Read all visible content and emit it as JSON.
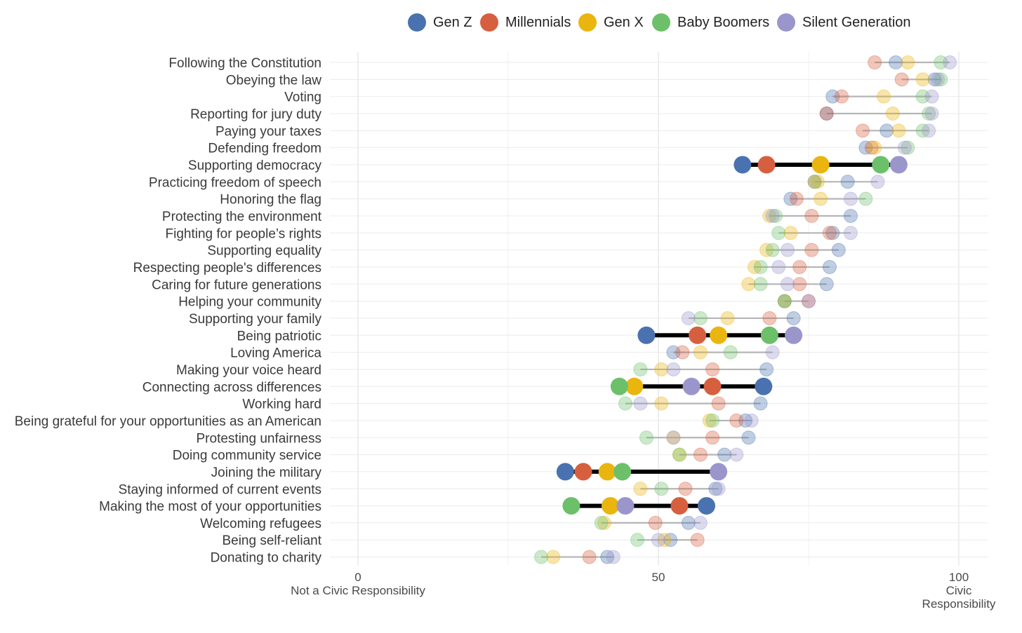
{
  "chart_data": {
    "type": "dot-range",
    "title": "",
    "xlim": [
      0,
      105
    ],
    "x_ticks": [
      {
        "value": 0,
        "label": "0",
        "sublabel": [
          "Not a Civic Responsibility"
        ]
      },
      {
        "value": 50,
        "label": "50",
        "sublabel": []
      },
      {
        "value": 100,
        "label": "100",
        "sublabel": [
          "Civic",
          "Responsibility"
        ]
      }
    ],
    "minor_grid": [
      25,
      75
    ],
    "series": [
      {
        "name": "Gen Z",
        "color": "#4a72b0"
      },
      {
        "name": "Millennials",
        "color": "#d65f3f"
      },
      {
        "name": "Gen X",
        "color": "#ebb50f"
      },
      {
        "name": "Baby Boomers",
        "color": "#6cc06a"
      },
      {
        "name": "Silent Generation",
        "color": "#9a96cc"
      }
    ],
    "categories": [
      {
        "label": "Following the Constitution",
        "highlight": false,
        "values": [
          89.5,
          86,
          91.5,
          97,
          98.5
        ]
      },
      {
        "label": "Obeying the law",
        "highlight": false,
        "values": [
          96,
          90.5,
          94,
          97,
          96.5
        ]
      },
      {
        "label": "Voting",
        "highlight": false,
        "values": [
          79,
          80.5,
          87.5,
          94,
          95.5
        ]
      },
      {
        "label": "Reporting for jury duty",
        "highlight": false,
        "values": [
          78,
          78,
          89,
          95,
          95.5
        ]
      },
      {
        "label": "Paying your taxes",
        "highlight": false,
        "values": [
          88,
          84,
          90,
          94,
          95
        ]
      },
      {
        "label": "Defending freedom",
        "highlight": false,
        "values": [
          84.5,
          85.5,
          86,
          91.5,
          91
        ]
      },
      {
        "label": "Supporting democracy",
        "highlight": true,
        "values": [
          64,
          68,
          77,
          87,
          90
        ]
      },
      {
        "label": "Practicing freedom of speech",
        "highlight": false,
        "values": [
          81.5,
          76,
          76.5,
          76,
          86.5
        ]
      },
      {
        "label": "Honoring the flag",
        "highlight": false,
        "values": [
          72,
          73,
          77,
          84.5,
          82
        ]
      },
      {
        "label": "Protecting the environment",
        "highlight": false,
        "values": [
          82,
          75.5,
          68.5,
          69.5,
          69
        ]
      },
      {
        "label": "Fighting for people’s rights",
        "highlight": false,
        "values": [
          79,
          78.5,
          72,
          70,
          82
        ]
      },
      {
        "label": "Supporting equality",
        "highlight": false,
        "values": [
          80,
          75.5,
          68,
          69,
          71.5
        ]
      },
      {
        "label": "Respecting people's differences",
        "highlight": false,
        "values": [
          78.5,
          73.5,
          66,
          67,
          70
        ]
      },
      {
        "label": "Caring for future generations",
        "highlight": false,
        "values": [
          78,
          73.5,
          65,
          67,
          71.5
        ]
      },
      {
        "label": "Helping your community",
        "highlight": false,
        "values": [
          71,
          75,
          71,
          71,
          75
        ]
      },
      {
        "label": "Supporting your family",
        "highlight": false,
        "values": [
          72.5,
          68.5,
          61.5,
          57,
          55
        ]
      },
      {
        "label": "Being patriotic",
        "highlight": true,
        "values": [
          48,
          56.5,
          60,
          68.5,
          72.5
        ]
      },
      {
        "label": "Loving America",
        "highlight": false,
        "values": [
          52.5,
          54,
          57,
          62,
          69
        ]
      },
      {
        "label": "Making your voice heard",
        "highlight": false,
        "values": [
          68,
          59,
          50.5,
          47,
          52.5
        ]
      },
      {
        "label": "Connecting across differences",
        "highlight": true,
        "values": [
          67.5,
          59,
          46,
          43.5,
          55.5
        ]
      },
      {
        "label": "Working hard",
        "highlight": false,
        "values": [
          67,
          60,
          50.5,
          44.5,
          47
        ]
      },
      {
        "label": "Being grateful for your opportunities as an American",
        "highlight": false,
        "values": [
          64.5,
          63,
          58.5,
          59,
          65.5
        ]
      },
      {
        "label": "Protesting unfairness",
        "highlight": false,
        "values": [
          65,
          59,
          52.5,
          48,
          52.5
        ]
      },
      {
        "label": "Doing community service",
        "highlight": false,
        "values": [
          61,
          57,
          53.5,
          53.5,
          63
        ]
      },
      {
        "label": "Joining the military",
        "highlight": true,
        "values": [
          34.5,
          37.5,
          41.5,
          44,
          60
        ]
      },
      {
        "label": "Staying informed of current events",
        "highlight": false,
        "values": [
          59.5,
          54.5,
          47,
          50.5,
          60
        ]
      },
      {
        "label": "Making the most of your opportunities",
        "highlight": true,
        "values": [
          58,
          53.5,
          42,
          35.5,
          44.5
        ]
      },
      {
        "label": "Welcoming refugees",
        "highlight": false,
        "values": [
          55,
          49.5,
          41,
          40.5,
          57
        ]
      },
      {
        "label": "Being self-reliant",
        "highlight": false,
        "values": [
          52,
          56.5,
          51,
          46.5,
          50
        ]
      },
      {
        "label": "Donating to charity",
        "highlight": false,
        "values": [
          41.5,
          38.5,
          32.5,
          30.5,
          42.5
        ]
      }
    ]
  }
}
